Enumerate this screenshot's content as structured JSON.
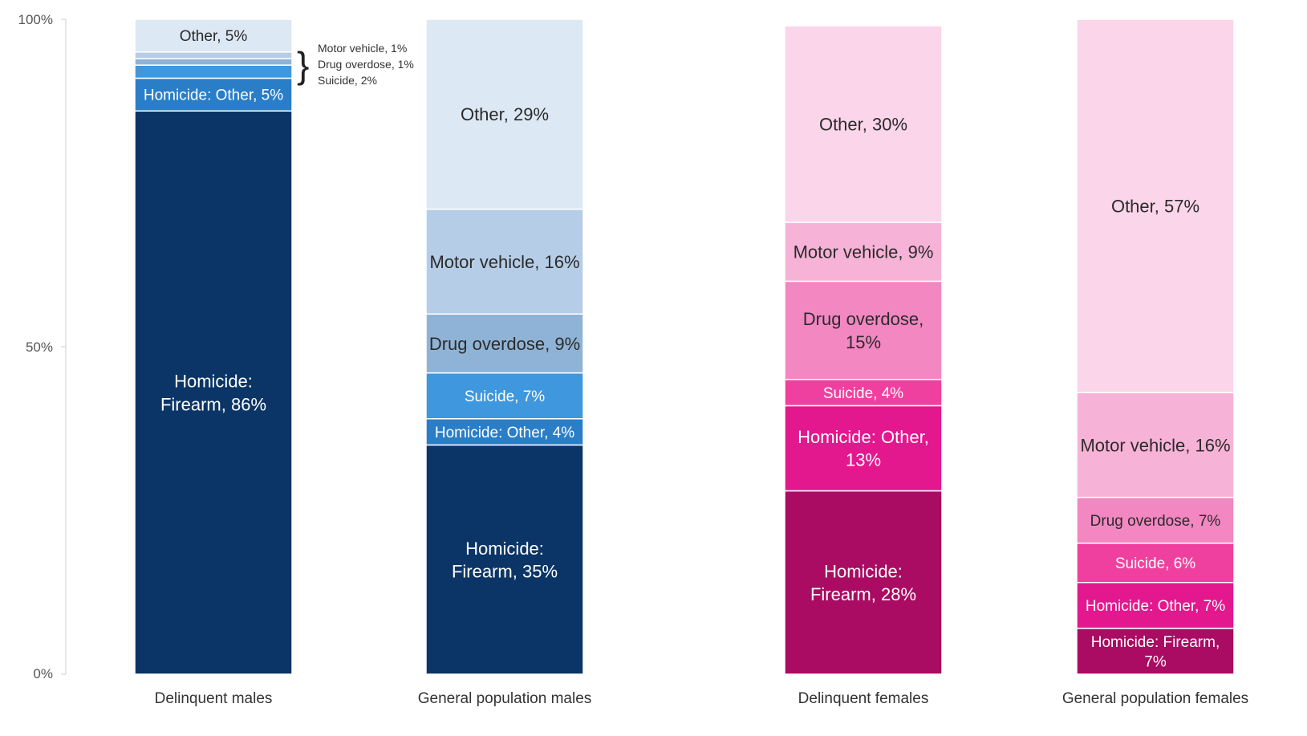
{
  "chart_data": {
    "type": "bar",
    "stacked": true,
    "percent_stacked": true,
    "title": "",
    "xlabel": "",
    "ylabel": "",
    "ylim": [
      0,
      100
    ],
    "y_ticks": [
      "0%",
      "50%",
      "100%"
    ],
    "grid": false,
    "legend": "none",
    "stack_order": [
      "Homicide: Firearm",
      "Homicide: Other",
      "Suicide",
      "Drug overdose",
      "Motor vehicle",
      "Other"
    ],
    "categories": [
      "Delinquent males",
      "General population males",
      "Delinquent females",
      "General population females"
    ],
    "series": [
      {
        "name": "Homicide: Firearm",
        "values": [
          86,
          35,
          28,
          7
        ]
      },
      {
        "name": "Homicide: Other",
        "values": [
          5,
          4,
          13,
          7
        ]
      },
      {
        "name": "Suicide",
        "values": [
          2,
          7,
          4,
          6
        ]
      },
      {
        "name": "Drug overdose",
        "values": [
          1,
          9,
          15,
          7
        ]
      },
      {
        "name": "Motor vehicle",
        "values": [
          1,
          16,
          9,
          16
        ]
      },
      {
        "name": "Other",
        "values": [
          5,
          29,
          30,
          57
        ]
      }
    ],
    "palettes": {
      "male": [
        "#0b3566",
        "#2a7ec8",
        "#3f97de",
        "#8fb3d6",
        "#b5cde6",
        "#dce8f4"
      ],
      "female": [
        "#a90c62",
        "#e3178e",
        "#f0409f",
        "#f287c2",
        "#f7b2d7",
        "#fbd5ea"
      ]
    },
    "bar_palette": [
      "male",
      "male",
      "female",
      "female"
    ],
    "label_colors": {
      "dark": "#ffffff",
      "light": "#2b2b2b"
    },
    "segment_labels": [
      [
        "Homicide:\nFirearm, 86%",
        "Homicide: Other, 5%",
        "",
        "",
        "",
        "Other, 5%"
      ],
      [
        "Homicide:\nFirearm, 35%",
        "Homicide: Other, 4%",
        "Suicide, 7%",
        "Drug overdose, 9%",
        "Motor vehicle, 16%",
        "Other, 29%"
      ],
      [
        "Homicide:\nFirearm, 28%",
        "Homicide: Other,\n13%",
        "Suicide, 4%",
        "Drug overdose,\n15%",
        "Motor vehicle, 9%",
        "Other, 30%"
      ],
      [
        "Homicide: Firearm,\n7%",
        "Homicide: Other, 7%",
        "Suicide, 6%",
        "Drug overdose, 7%",
        "Motor vehicle, 16%",
        "Other, 57%"
      ]
    ],
    "annotations": [
      {
        "bar": "Delinquent males",
        "bracket": "}",
        "lines": [
          "Motor vehicle, 1%",
          "Drug overdose, 1%",
          "Suicide, 2%"
        ]
      }
    ]
  }
}
